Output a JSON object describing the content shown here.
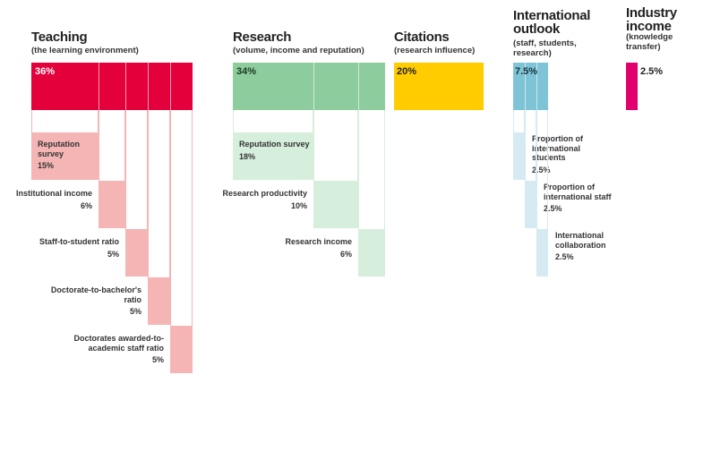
{
  "colors": {
    "teaching": "#E4003B",
    "teaching_light": "#F5B5B5",
    "research": "#8DCC9C",
    "research_light": "#D6EEDC",
    "citations": "#FFCC00",
    "international": "#7FC4D6",
    "international_light": "#D5EAF2",
    "industry": "#E2006F"
  },
  "teaching": {
    "title": "Teaching",
    "subtitle": "(the learning environment)",
    "total": "36%",
    "items": [
      {
        "label": "Reputation survey",
        "value": "15%"
      },
      {
        "label": "Institutional income",
        "value": "6%"
      },
      {
        "label": "Staff-to-student ratio",
        "value": "5%"
      },
      {
        "label": "Doctorate-to-bachelor's ratio",
        "value": "5%"
      },
      {
        "label": "Doctorates awarded-to-academic staff ratio",
        "value": "5%"
      }
    ]
  },
  "research": {
    "title": "Research",
    "subtitle": "(volume, income and reputation)",
    "total": "34%",
    "items": [
      {
        "label": "Reputation survey",
        "value": "18%"
      },
      {
        "label": "Research productivity",
        "value": "10%"
      },
      {
        "label": "Research income",
        "value": "6%"
      }
    ]
  },
  "citations": {
    "title": "Citations",
    "subtitle": "(research influence)",
    "total": "20%"
  },
  "international": {
    "title": "International outlook",
    "subtitle": "(staff, students, research)",
    "total": "7.5%",
    "items": [
      {
        "label": "Proportion of international students",
        "value": "2.5%"
      },
      {
        "label": "Proportion of international staff",
        "value": "2.5%"
      },
      {
        "label": "International collaboration",
        "value": "2.5%"
      }
    ]
  },
  "industry": {
    "title": "Industry income",
    "subtitle": "(knowledge transfer)",
    "total": "2.5%"
  }
}
